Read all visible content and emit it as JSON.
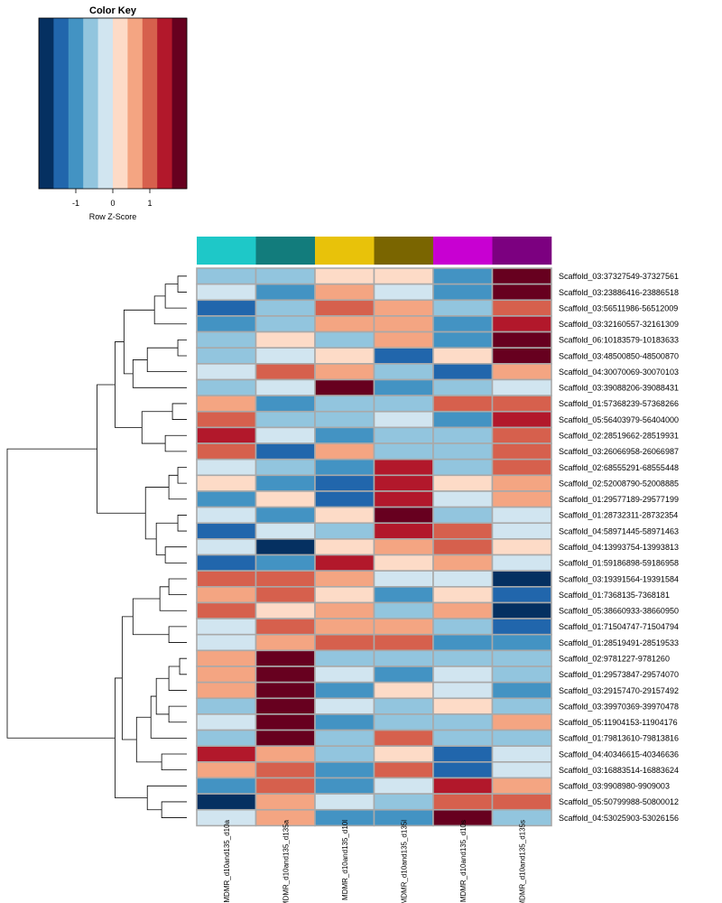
{
  "chart_data": {
    "type": "heatmap",
    "color_key": {
      "title": "Color Key",
      "xlabel": "Row Z-Score",
      "tick_labels": [
        "-1",
        "0",
        "1"
      ],
      "tick_values": [
        -1,
        0,
        1
      ],
      "range": [
        -2,
        2
      ],
      "palette": [
        "#053061",
        "#2166ac",
        "#4393c3",
        "#92c5de",
        "#d1e5f0",
        "#fddbc7",
        "#f4a582",
        "#d6604d",
        "#b2182b",
        "#67001f"
      ]
    },
    "column_colors": [
      "#1ec8c8",
      "#127c7c",
      "#e8c20a",
      "#7a6500",
      "#c800d2",
      "#7c0080"
    ],
    "columns": [
      "MDMR_d10and135_d10a",
      "MDMR_d10and135_d135a",
      "MDMR_d10and135_d10l",
      "MDMR_d10and135_d135l",
      "MDMR_d10and135_d10s",
      "MDMR_d10and135_d135s"
    ],
    "rows": [
      "Scaffold_03:37327549-37327561",
      "Scaffold_03:23886416-23886518",
      "Scaffold_03:56511986-56512009",
      "Scaffold_03:32160557-32161309",
      "Scaffold_06:10183579-10183633",
      "Scaffold_03:48500850-48500870",
      "Scaffold_04:30070069-30070103",
      "Scaffold_03:39088206-39088431",
      "Scaffold_01:57368239-57368266",
      "Scaffold_05:56403979-56404000",
      "Scaffold_02:28519662-28519931",
      "Scaffold_03:26066958-26066987",
      "Scaffold_02:68555291-68555448",
      "Scaffold_02:52008790-52008885",
      "Scaffold_01:29577189-29577199",
      "Scaffold_01:28732311-28732354",
      "Scaffold_04:58971445-58971463",
      "Scaffold_04:13993754-13993813",
      "Scaffold_01:59186898-59186958",
      "Scaffold_03:19391564-19391584",
      "Scaffold_01:7368135-7368181",
      "Scaffold_05:38660933-38660950",
      "Scaffold_01:71504747-71504794",
      "Scaffold_01:28519491-28519533",
      "Scaffold_02:9781227-9781260",
      "Scaffold_01:29573847-29574070",
      "Scaffold_03:29157470-29157492",
      "Scaffold_03:39970369-39970478",
      "Scaffold_05:11904153-11904176",
      "Scaffold_01:79813610-79813816",
      "Scaffold_04:40346615-40346636",
      "Scaffold_03:16883514-16883624",
      "Scaffold_03:9908980-9909003",
      "Scaffold_05:50799988-50800012",
      "Scaffold_04:53025903-53026156"
    ],
    "values": [
      [
        -0.6,
        -0.6,
        0.3,
        0.3,
        -1.1,
        1.9
      ],
      [
        -0.2,
        -1.1,
        0.6,
        -0.2,
        -1.1,
        1.9
      ],
      [
        -1.5,
        -0.6,
        1.0,
        0.6,
        -0.6,
        1.0
      ],
      [
        -1.1,
        -0.6,
        0.6,
        0.6,
        -1.1,
        1.5
      ],
      [
        -0.6,
        0.3,
        -0.6,
        0.6,
        -1.1,
        1.9
      ],
      [
        -0.6,
        -0.2,
        0.3,
        -1.5,
        0.3,
        1.9
      ],
      [
        -0.2,
        1.0,
        0.6,
        -0.6,
        -1.5,
        0.6
      ],
      [
        -0.6,
        -0.2,
        1.9,
        -1.1,
        -0.6,
        -0.2
      ],
      [
        0.6,
        -1.1,
        -0.6,
        -0.6,
        1.0,
        1.0
      ],
      [
        1.0,
        -0.6,
        -0.6,
        -0.2,
        -1.1,
        1.5
      ],
      [
        1.5,
        -0.2,
        -1.1,
        -0.6,
        -0.6,
        1.0
      ],
      [
        1.0,
        -1.5,
        0.6,
        -0.6,
        -0.6,
        1.0
      ],
      [
        -0.2,
        -0.6,
        -1.1,
        1.5,
        -0.6,
        1.0
      ],
      [
        0.3,
        -1.1,
        -1.5,
        1.5,
        0.3,
        0.6
      ],
      [
        -1.1,
        0.3,
        -1.5,
        1.5,
        -0.2,
        0.6
      ],
      [
        -0.2,
        -1.1,
        0.3,
        1.9,
        -0.6,
        -0.2
      ],
      [
        -1.5,
        -0.2,
        -0.6,
        1.5,
        1.0,
        -0.2
      ],
      [
        -0.2,
        -1.9,
        0.3,
        0.6,
        1.0,
        0.3
      ],
      [
        -1.5,
        -1.1,
        1.5,
        0.3,
        0.6,
        -0.2
      ],
      [
        1.0,
        1.0,
        0.6,
        -0.2,
        -0.2,
        -1.9
      ],
      [
        0.6,
        1.0,
        0.3,
        -1.1,
        0.3,
        -1.5
      ],
      [
        1.0,
        0.3,
        0.6,
        -0.6,
        0.6,
        -1.9
      ],
      [
        -0.2,
        1.0,
        0.6,
        0.6,
        -0.6,
        -1.5
      ],
      [
        -0.2,
        0.6,
        1.0,
        1.0,
        -1.1,
        -1.1
      ],
      [
        0.6,
        1.9,
        -0.6,
        -0.6,
        -0.6,
        -0.6
      ],
      [
        0.6,
        1.9,
        -0.2,
        -1.1,
        -0.2,
        -0.6
      ],
      [
        0.6,
        1.9,
        -1.1,
        0.3,
        -0.2,
        -1.1
      ],
      [
        -0.6,
        1.9,
        -0.2,
        -0.6,
        0.3,
        -0.6
      ],
      [
        -0.2,
        1.9,
        -1.1,
        -0.6,
        -0.6,
        0.6
      ],
      [
        -0.6,
        1.9,
        -0.6,
        1.0,
        -0.6,
        -0.6
      ],
      [
        1.5,
        0.6,
        -0.6,
        0.3,
        -1.5,
        -0.2
      ],
      [
        0.6,
        1.0,
        -1.1,
        1.0,
        -1.5,
        -0.2
      ],
      [
        -1.1,
        1.0,
        -1.1,
        -0.2,
        1.5,
        0.6
      ],
      [
        -1.9,
        0.6,
        -0.2,
        -0.6,
        1.0,
        1.0
      ],
      [
        -0.2,
        0.6,
        -1.1,
        -1.1,
        1.9,
        -0.6
      ]
    ],
    "dendrogram_merges": [
      [
        0,
        1
      ],
      [
        -1,
        2
      ],
      [
        -2,
        3
      ],
      [
        4,
        5
      ],
      [
        -4,
        6
      ],
      [
        -5,
        7
      ],
      [
        -3,
        -6
      ],
      [
        8,
        9
      ],
      [
        10,
        11
      ],
      [
        -8,
        -9
      ],
      [
        -7,
        -10
      ],
      [
        12,
        13
      ],
      [
        -12,
        14
      ],
      [
        15,
        16
      ],
      [
        17,
        18
      ],
      [
        -14,
        -15
      ],
      [
        -13,
        -16
      ],
      [
        -11,
        -17
      ],
      [
        19,
        20
      ],
      [
        -19,
        21
      ],
      [
        22,
        23
      ],
      [
        -20,
        -21
      ],
      [
        24,
        25
      ],
      [
        -23,
        26
      ],
      [
        27,
        28
      ],
      [
        -24,
        -25
      ],
      [
        -26,
        29
      ],
      [
        30,
        31
      ],
      [
        -27,
        -28
      ],
      [
        -22,
        -29
      ],
      [
        33,
        34
      ],
      [
        32,
        -31
      ],
      [
        -30,
        -32
      ],
      [
        -18,
        -33
      ]
    ],
    "dendrogram_heights": [
      0.05,
      0.12,
      0.18,
      0.05,
      0.22,
      0.3,
      0.35,
      0.08,
      0.12,
      0.25,
      0.4,
      0.05,
      0.1,
      0.05,
      0.12,
      0.17,
      0.23,
      0.5,
      0.1,
      0.15,
      0.1,
      0.3,
      0.04,
      0.1,
      0.1,
      0.17,
      0.2,
      0.14,
      0.28,
      0.36,
      0.14,
      0.22,
      0.4,
      1.0
    ]
  }
}
